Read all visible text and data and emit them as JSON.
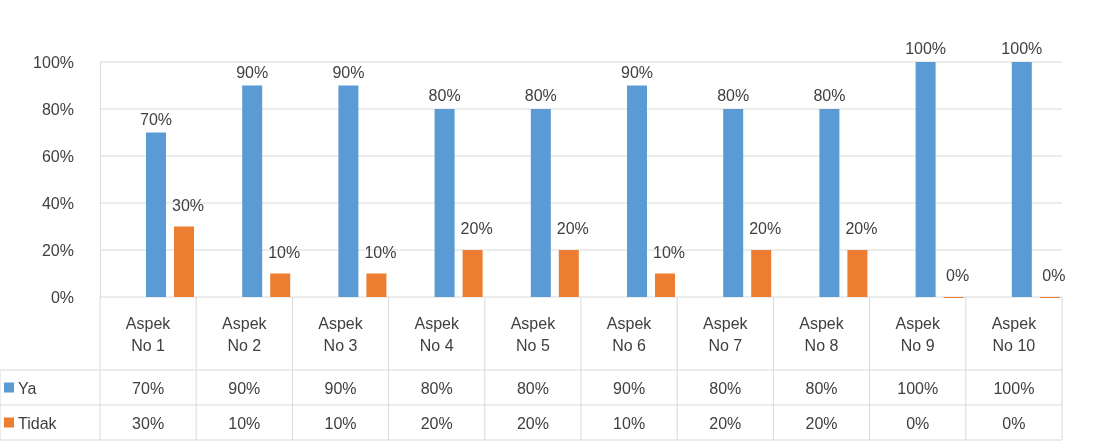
{
  "chart_data": {
    "type": "bar",
    "categories": [
      "Aspek No 1",
      "Aspek No 2",
      "Aspek No 3",
      "Aspek No 4",
      "Aspek No 5",
      "Aspek No 6",
      "Aspek No 7",
      "Aspek No 8",
      "Aspek No 9",
      "Aspek No 10"
    ],
    "series": [
      {
        "name": "Ya",
        "color": "#5b9bd5",
        "values": [
          70,
          90,
          90,
          80,
          80,
          90,
          80,
          80,
          100,
          100
        ],
        "value_labels": [
          "70%",
          "90%",
          "90%",
          "80%",
          "80%",
          "90%",
          "80%",
          "80%",
          "100%",
          "100%"
        ]
      },
      {
        "name": "Tidak",
        "color": "#ed7d31",
        "values": [
          30,
          10,
          10,
          20,
          20,
          10,
          20,
          20,
          0,
          0
        ],
        "value_labels": [
          "30%",
          "10%",
          "10%",
          "20%",
          "20%",
          "10%",
          "20%",
          "20%",
          "0%",
          "0%"
        ]
      }
    ],
    "ylim": [
      0,
      100
    ],
    "yticks": [
      {
        "value": 0,
        "label": "0%"
      },
      {
        "value": 20,
        "label": "20%"
      },
      {
        "value": 40,
        "label": "40%"
      },
      {
        "value": 60,
        "label": "60%"
      },
      {
        "value": 80,
        "label": "80%"
      },
      {
        "value": 100,
        "label": "100%"
      }
    ],
    "grid": "y",
    "legend": "bottom"
  }
}
